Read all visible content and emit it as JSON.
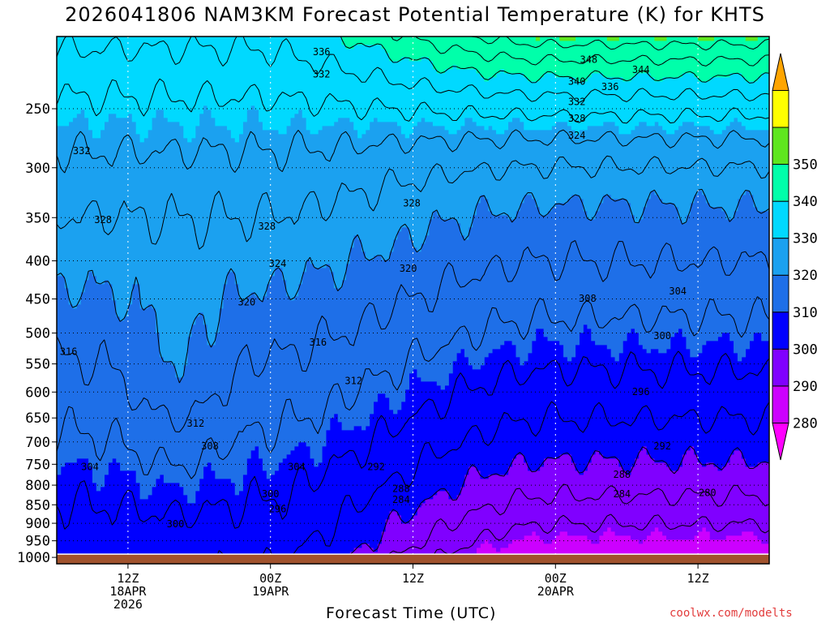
{
  "title": "2026041806 NAM3KM Forecast Potential Temperature (K) for KHTS",
  "credit": "coolwx.com/modelts",
  "colors": {
    "ground": "#a0522d",
    "bands": [
      "#ff00ff",
      "#cc00ff",
      "#8000ff",
      "#0000ff",
      "#1e6fe8",
      "#1ba1f0",
      "#00d9ff",
      "#00ffaa",
      "#5fe61e",
      "#ffff00",
      "#ffa500"
    ]
  },
  "chart_data": {
    "type": "contour",
    "title": "2026041806 NAM3KM Forecast Potential Temperature (K) for KHTS",
    "xlabel": "Forecast Time (UTC)",
    "ylabel": "",
    "x_ticks": [
      {
        "hour": 6,
        "lines": [
          "12Z",
          "18APR",
          "2026"
        ]
      },
      {
        "hour": 18,
        "lines": [
          "00Z",
          "19APR"
        ]
      },
      {
        "hour": 30,
        "lines": [
          "12Z"
        ]
      },
      {
        "hour": 42,
        "lines": [
          "00Z",
          "20APR"
        ]
      },
      {
        "hour": 54,
        "lines": [
          "12Z"
        ]
      }
    ],
    "x_range_hours": [
      0,
      60
    ],
    "y_ticks": [
      250,
      300,
      350,
      400,
      450,
      500,
      550,
      600,
      650,
      700,
      750,
      800,
      850,
      900,
      950,
      1000
    ],
    "y_range_hpa": [
      200,
      1020
    ],
    "y_scale": "log-pressure",
    "grid": true,
    "colorbar": {
      "levels": [
        280,
        290,
        300,
        310,
        320,
        330,
        340,
        350
      ],
      "position": "right"
    },
    "contour_levels": [
      292,
      296,
      300,
      304,
      308,
      312,
      316,
      320,
      324,
      328,
      332,
      336,
      340,
      344,
      348
    ],
    "labels": [
      {
        "text": "336",
        "hour": 22.3,
        "p": 210
      },
      {
        "text": "332",
        "hour": 22.3,
        "p": 225
      },
      {
        "text": "348",
        "hour": 44.8,
        "p": 215
      },
      {
        "text": "344",
        "hour": 49.2,
        "p": 222
      },
      {
        "text": "340",
        "hour": 43.8,
        "p": 230
      },
      {
        "text": "336",
        "hour": 46.6,
        "p": 234
      },
      {
        "text": "332",
        "hour": 43.8,
        "p": 245
      },
      {
        "text": "328",
        "hour": 43.8,
        "p": 258
      },
      {
        "text": "324",
        "hour": 43.8,
        "p": 272
      },
      {
        "text": "332",
        "hour": 2.1,
        "p": 285
      },
      {
        "text": "328",
        "hour": 29.9,
        "p": 335
      },
      {
        "text": "328",
        "hour": 3.9,
        "p": 353
      },
      {
        "text": "328",
        "hour": 17.7,
        "p": 360
      },
      {
        "text": "324",
        "hour": 18.6,
        "p": 404
      },
      {
        "text": "320",
        "hour": 29.6,
        "p": 410
      },
      {
        "text": "320",
        "hour": 16.0,
        "p": 455
      },
      {
        "text": "308",
        "hour": 44.7,
        "p": 450
      },
      {
        "text": "304",
        "hour": 52.3,
        "p": 440
      },
      {
        "text": "316",
        "hour": 1.0,
        "p": 530
      },
      {
        "text": "316",
        "hour": 22.0,
        "p": 515
      },
      {
        "text": "300",
        "hour": 51.0,
        "p": 505
      },
      {
        "text": "312",
        "hour": 25.0,
        "p": 580
      },
      {
        "text": "296",
        "hour": 49.2,
        "p": 600
      },
      {
        "text": "312",
        "hour": 11.7,
        "p": 662
      },
      {
        "text": "308",
        "hour": 12.9,
        "p": 710
      },
      {
        "text": "292",
        "hour": 51.0,
        "p": 710
      },
      {
        "text": "304",
        "hour": 2.8,
        "p": 757
      },
      {
        "text": "304",
        "hour": 20.2,
        "p": 757
      },
      {
        "text": "292",
        "hour": 26.9,
        "p": 757
      },
      {
        "text": "288",
        "hour": 29.0,
        "p": 810
      },
      {
        "text": "288",
        "hour": 47.6,
        "p": 775
      },
      {
        "text": "284",
        "hour": 29.0,
        "p": 838
      },
      {
        "text": "284",
        "hour": 47.6,
        "p": 823
      },
      {
        "text": "300",
        "hour": 18.0,
        "p": 823
      },
      {
        "text": "296",
        "hour": 18.6,
        "p": 862
      },
      {
        "text": "300",
        "hour": 10.0,
        "p": 903
      },
      {
        "text": "280",
        "hour": 54.8,
        "p": 820
      }
    ]
  }
}
